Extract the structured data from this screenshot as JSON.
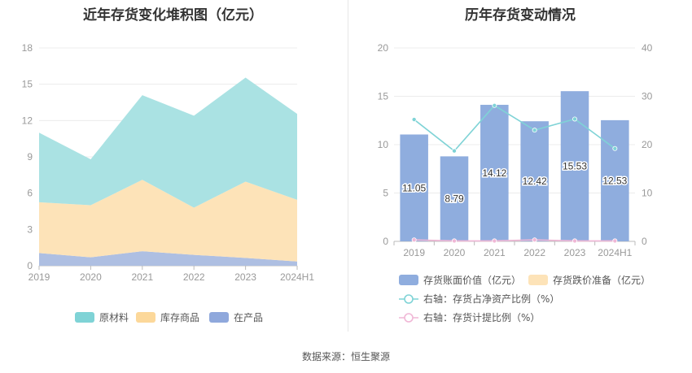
{
  "source_text": "数据来源：恒生聚源",
  "chart_data": [
    {
      "type": "area",
      "title": "近年存货变化堆积图（亿元）",
      "stacked": true,
      "categories": [
        "2019",
        "2020",
        "2021",
        "2022",
        "2023",
        "2024H1"
      ],
      "yticks": [
        "0",
        "3",
        "6",
        "9",
        "12",
        "15",
        "18"
      ],
      "ylim": [
        0,
        18
      ],
      "grid": true,
      "legend_position": "bottom",
      "series": [
        {
          "name": "在产品",
          "color": "#aebfe2",
          "legend_color": "#8fa8dc",
          "values": [
            1.05,
            0.7,
            1.2,
            0.9,
            0.65,
            0.35
          ]
        },
        {
          "name": "库存商品",
          "color": "#fde3b8",
          "legend_color": "#fcd89a",
          "values": [
            4.2,
            4.3,
            5.9,
            3.9,
            6.3,
            5.1
          ]
        },
        {
          "name": "原材料",
          "color": "#aae2e3",
          "legend_color": "#7fd3d6",
          "values": [
            5.75,
            3.8,
            7.0,
            7.6,
            8.6,
            7.1
          ]
        }
      ],
      "legend_order": [
        "原材料",
        "库存商品",
        "在产品"
      ]
    },
    {
      "type": "bar",
      "title": "历年存货变动情况",
      "categories": [
        "2019",
        "2020",
        "2021",
        "2022",
        "2023",
        "2024H1"
      ],
      "yticks_left": [
        "0",
        "5",
        "10",
        "15",
        "20"
      ],
      "ylim_left": [
        0,
        20
      ],
      "yticks_right": [
        "0",
        "10",
        "20",
        "30",
        "40"
      ],
      "ylim_right": [
        0,
        40
      ],
      "grid": true,
      "legend_position": "bottom",
      "bars": [
        {
          "name": "存货账面价值（亿元）",
          "color": "#8fadde",
          "values": [
            11.05,
            8.79,
            14.12,
            12.42,
            15.53,
            12.53
          ],
          "labels": [
            "11.05",
            "8.79",
            "14.12",
            "12.42",
            "15.53",
            "12.53"
          ]
        },
        {
          "name": "存货跌价准备（亿元）",
          "color": "#fde3b8",
          "values": [
            0,
            0,
            0,
            0,
            0,
            0
          ]
        }
      ],
      "lines": [
        {
          "name": "右轴：存货占净资产比例（%）",
          "color": "#7fd3d6",
          "axis": "right",
          "values": [
            25.2,
            18.7,
            28.1,
            23.0,
            25.3,
            19.2
          ]
        },
        {
          "name": "右轴：存货计提比例（%）",
          "color": "#f0b7d6",
          "axis": "right",
          "values": [
            0.3,
            0.1,
            0.1,
            0.3,
            0.1,
            0.1
          ]
        }
      ]
    }
  ]
}
